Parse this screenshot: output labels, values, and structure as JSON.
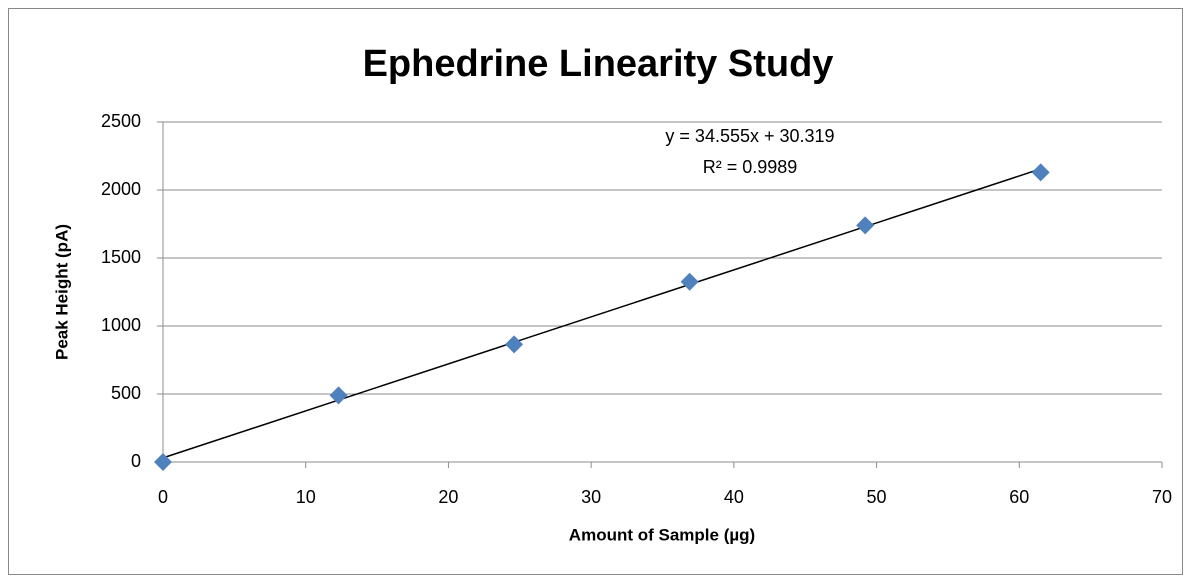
{
  "chart_data": {
    "type": "scatter",
    "title": "Ephedrine Linearity Study",
    "x_label": "Amount of Sample (µg)",
    "y_label": "Peak Height (pA)",
    "series": [
      {
        "color": "#4f81bd",
        "x": [
          0,
          12.3,
          24.6,
          36.9,
          49.2,
          61.5
        ],
        "values": [
          0,
          490,
          865,
          1325,
          1740,
          2130
        ]
      }
    ],
    "trendline": {
      "label": "y = 34.555x + 30.319",
      "r2_label": "R² = 0.9989",
      "slope": 34.555,
      "intercept": 30.319,
      "color": "#000000"
    },
    "xlim": [
      0,
      70
    ],
    "xticks": [
      0,
      10,
      20,
      30,
      40,
      50,
      60,
      70
    ],
    "ylim": [
      0,
      2500
    ],
    "yticks": [
      0,
      500,
      1000,
      1500,
      2000,
      2500
    ],
    "grid": true
  }
}
